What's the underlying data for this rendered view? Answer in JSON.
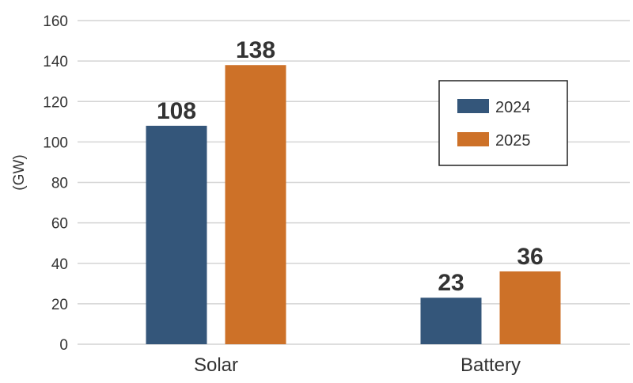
{
  "chart_data": {
    "type": "bar",
    "categories": [
      "Solar",
      "Battery"
    ],
    "series": [
      {
        "name": "2024",
        "values": [
          108,
          23
        ],
        "color": "#34567a"
      },
      {
        "name": "2025",
        "values": [
          138,
          36
        ],
        "color": "#cd7128"
      }
    ],
    "ylabel": "(GW)",
    "ylim": [
      0,
      160
    ],
    "yticks": [
      0,
      20,
      40,
      60,
      80,
      100,
      120,
      140,
      160
    ],
    "grid": true,
    "legend_position": "right"
  }
}
